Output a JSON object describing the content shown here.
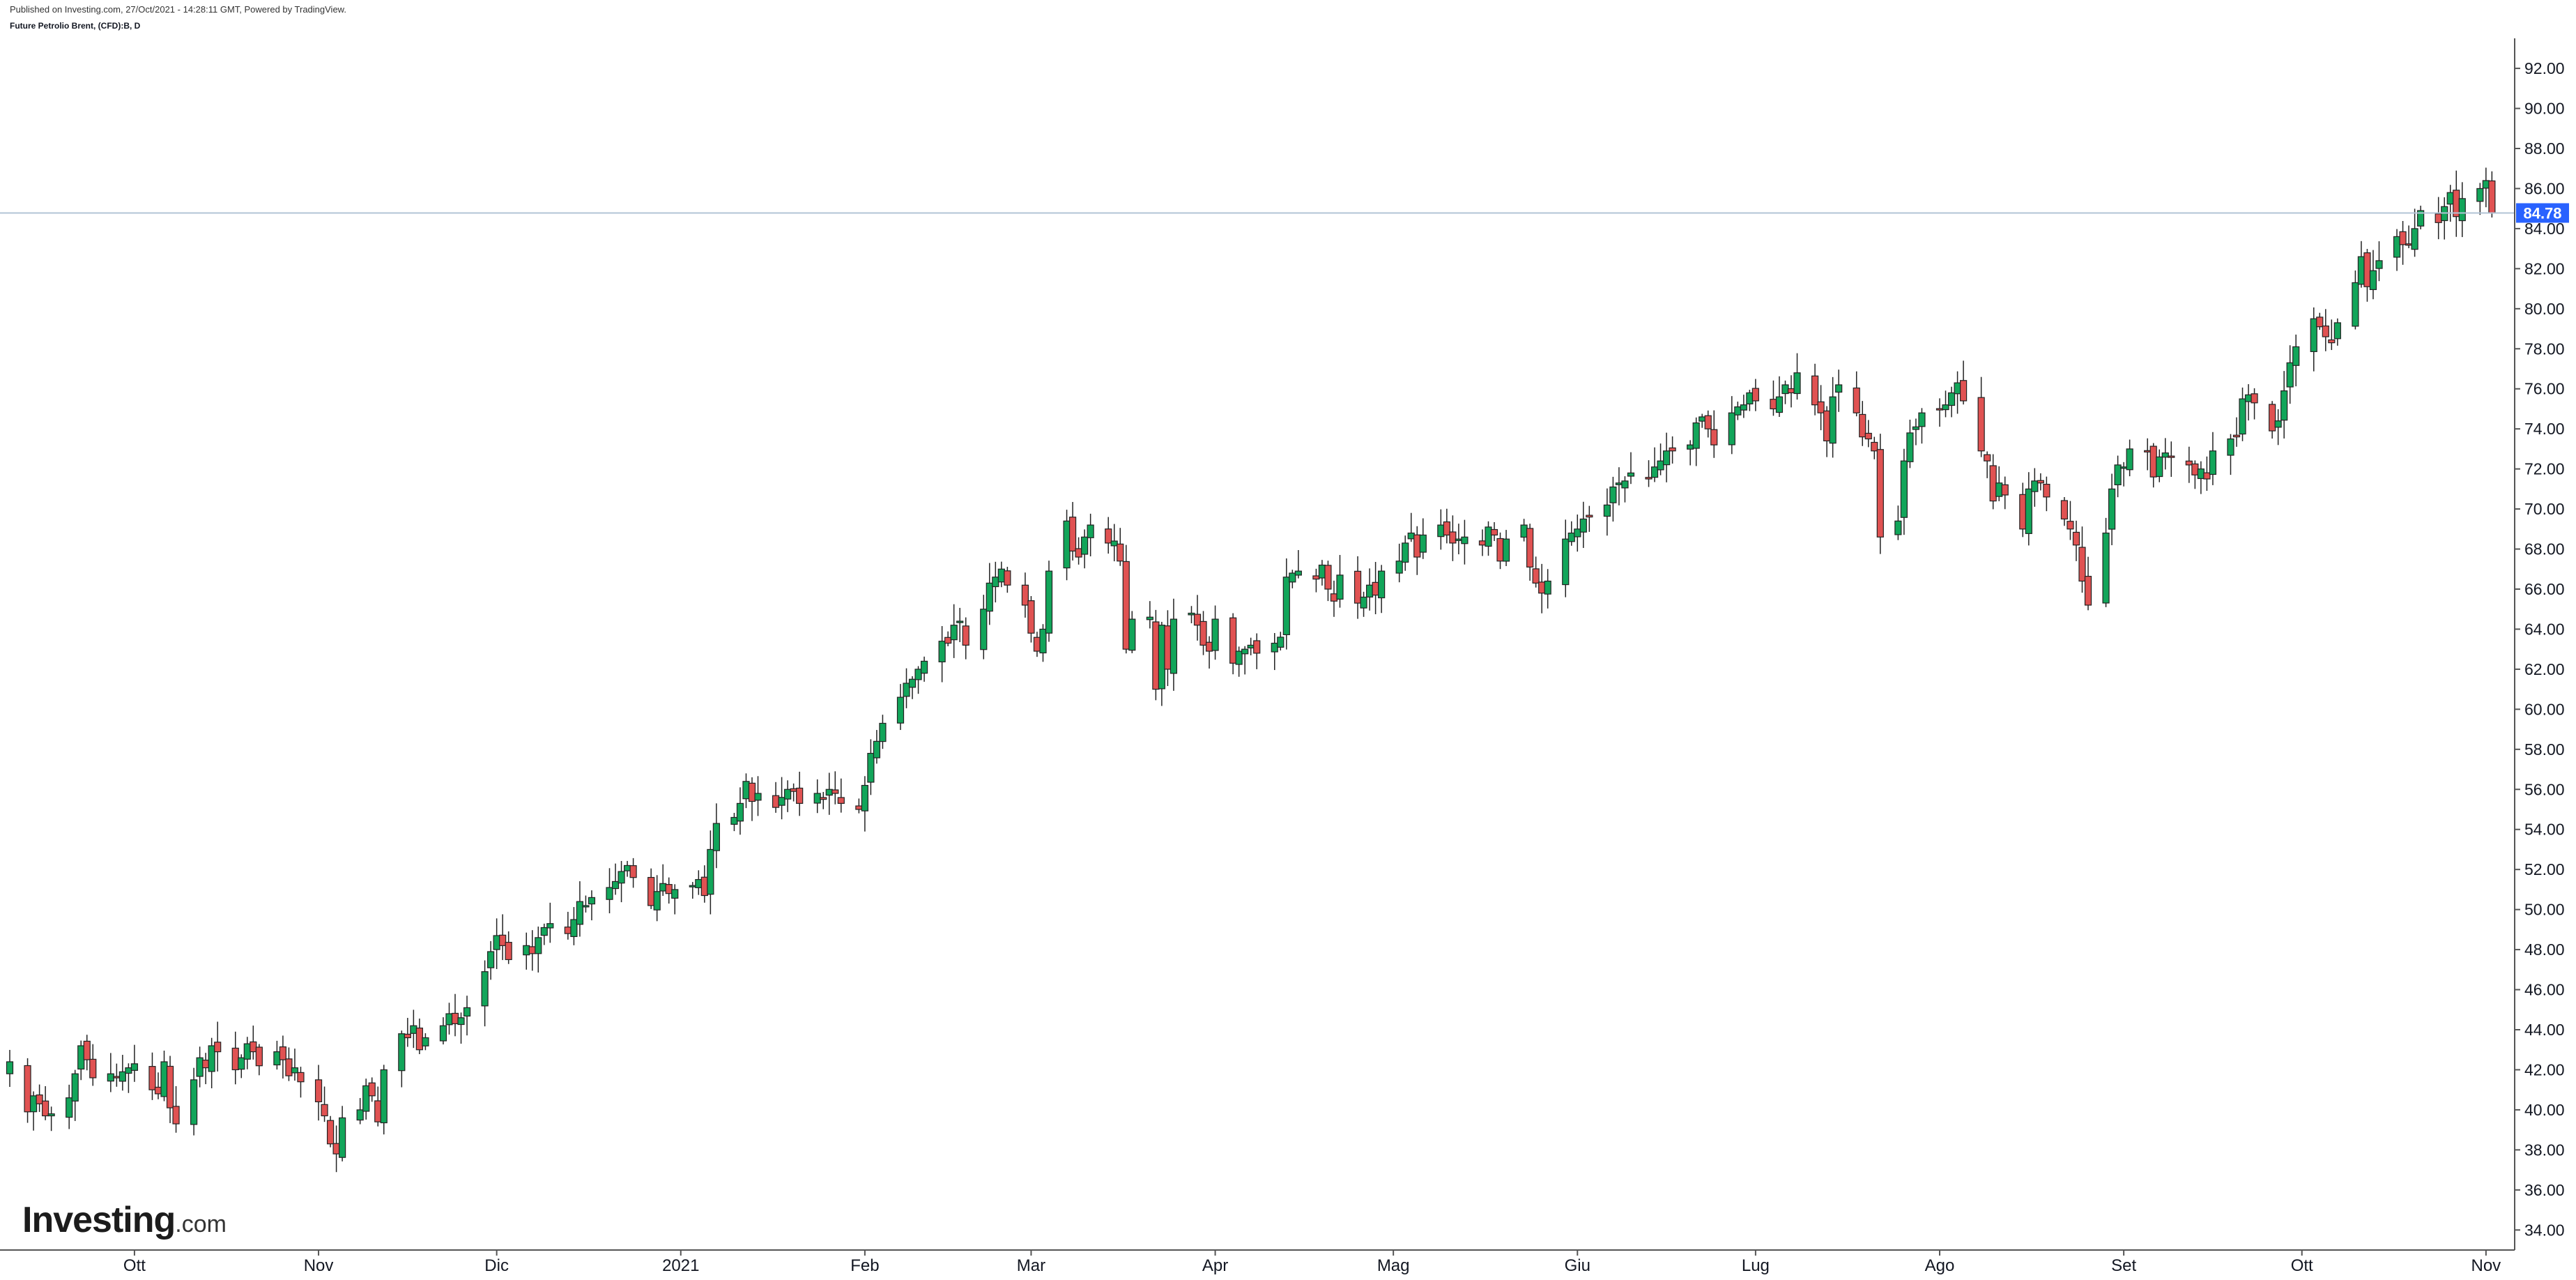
{
  "header": {
    "published": "Published on Investing.com, 27/Oct/2021 - 14:28:11 GMT, Powered by TradingView.",
    "symbol": "Future Petrolio Brent, (CFD):B, D"
  },
  "logo": {
    "name": "Investing",
    "suffix": ".com"
  },
  "price_tag": {
    "value": "84.78",
    "color": "#2962ff"
  },
  "colors": {
    "up": "#26a69a",
    "up_fill": "#12a55a",
    "down": "#e05252",
    "line": "#b2c4d6"
  },
  "chart_data": {
    "type": "candlestick",
    "title": "Future Petrolio Brent, (CFD):B, D",
    "ylim": [
      33.0,
      93.5
    ],
    "y_ticks": [
      "34.00",
      "36.00",
      "38.00",
      "40.00",
      "42.00",
      "44.00",
      "46.00",
      "48.00",
      "50.00",
      "52.00",
      "54.00",
      "56.00",
      "58.00",
      "60.00",
      "62.00",
      "64.00",
      "66.00",
      "68.00",
      "70.00",
      "72.00",
      "74.00",
      "76.00",
      "78.00",
      "80.00",
      "82.00",
      "84.00",
      "86.00",
      "88.00",
      "90.00",
      "92.00"
    ],
    "x_ticks": [
      {
        "label": "Ott",
        "day": 21
      },
      {
        "label": "Nov",
        "day": 52
      },
      {
        "label": "Dic",
        "day": 82
      },
      {
        "label": "2021",
        "day": 113
      },
      {
        "label": "Feb",
        "day": 144
      },
      {
        "label": "Mar",
        "day": 172
      },
      {
        "label": "Apr",
        "day": 203
      },
      {
        "label": "Mag",
        "day": 233
      },
      {
        "label": "Giu",
        "day": 264
      },
      {
        "label": "Lug",
        "day": 294
      },
      {
        "label": "Ago",
        "day": 325
      },
      {
        "label": "Set",
        "day": 356
      },
      {
        "label": "Ott",
        "day": 386
      },
      {
        "label": "Nov",
        "day": 417
      }
    ],
    "current_price": 84.78,
    "closes": [
      {
        "day": 0,
        "close": 42.4
      },
      {
        "day": 3,
        "close": 39.9
      },
      {
        "day": 4,
        "close": 40.7
      },
      {
        "day": 5,
        "close": 40.3
      },
      {
        "day": 6,
        "close": 39.7
      },
      {
        "day": 7,
        "close": 39.8
      },
      {
        "day": 10,
        "close": 40.6
      },
      {
        "day": 11,
        "close": 41.8
      },
      {
        "day": 12,
        "close": 43.2
      },
      {
        "day": 13,
        "close": 42.5
      },
      {
        "day": 14,
        "close": 41.6
      },
      {
        "day": 17,
        "close": 41.8
      },
      {
        "day": 18,
        "close": 41.6
      },
      {
        "day": 19,
        "close": 41.9
      },
      {
        "day": 20,
        "close": 42.1
      },
      {
        "day": 21,
        "close": 42.3
      },
      {
        "day": 24,
        "close": 41.0
      },
      {
        "day": 25,
        "close": 40.8
      },
      {
        "day": 26,
        "close": 42.4
      },
      {
        "day": 27,
        "close": 40.1
      },
      {
        "day": 28,
        "close": 39.3
      },
      {
        "day": 31,
        "close": 41.5
      },
      {
        "day": 32,
        "close": 42.6
      },
      {
        "day": 33,
        "close": 42.1
      },
      {
        "day": 34,
        "close": 43.2
      },
      {
        "day": 35,
        "close": 42.9
      },
      {
        "day": 38,
        "close": 42.0
      },
      {
        "day": 39,
        "close": 42.6
      },
      {
        "day": 40,
        "close": 43.3
      },
      {
        "day": 41,
        "close": 42.9
      },
      {
        "day": 42,
        "close": 42.2
      },
      {
        "day": 45,
        "close": 42.9
      },
      {
        "day": 46,
        "close": 42.5
      },
      {
        "day": 47,
        "close": 41.7
      },
      {
        "day": 48,
        "close": 42.1
      },
      {
        "day": 49,
        "close": 41.4
      },
      {
        "day": 52,
        "close": 40.4
      },
      {
        "day": 53,
        "close": 39.7
      },
      {
        "day": 54,
        "close": 38.3
      },
      {
        "day": 55,
        "close": 37.8
      },
      {
        "day": 56,
        "close": 39.6
      },
      {
        "day": 59,
        "close": 40.0
      },
      {
        "day": 60,
        "close": 41.2
      },
      {
        "day": 61,
        "close": 40.7
      },
      {
        "day": 62,
        "close": 39.4
      },
      {
        "day": 63,
        "close": 42.0
      },
      {
        "day": 66,
        "close": 43.8
      },
      {
        "day": 67,
        "close": 43.6
      },
      {
        "day": 68,
        "close": 44.2
      },
      {
        "day": 69,
        "close": 43.0
      },
      {
        "day": 70,
        "close": 43.6
      },
      {
        "day": 73,
        "close": 44.2
      },
      {
        "day": 74,
        "close": 44.8
      },
      {
        "day": 75,
        "close": 44.3
      },
      {
        "day": 76,
        "close": 44.6
      },
      {
        "day": 77,
        "close": 45.1
      },
      {
        "day": 80,
        "close": 46.9
      },
      {
        "day": 81,
        "close": 47.9
      },
      {
        "day": 82,
        "close": 48.7
      },
      {
        "day": 83,
        "close": 48.2
      },
      {
        "day": 84,
        "close": 47.5
      },
      {
        "day": 87,
        "close": 48.2
      },
      {
        "day": 88,
        "close": 47.8
      },
      {
        "day": 89,
        "close": 48.6
      },
      {
        "day": 90,
        "close": 49.1
      },
      {
        "day": 91,
        "close": 49.3
      },
      {
        "day": 94,
        "close": 48.8
      },
      {
        "day": 95,
        "close": 49.5
      },
      {
        "day": 96,
        "close": 50.4
      },
      {
        "day": 97,
        "close": 50.2
      },
      {
        "day": 98,
        "close": 50.6
      },
      {
        "day": 101,
        "close": 51.1
      },
      {
        "day": 102,
        "close": 51.4
      },
      {
        "day": 103,
        "close": 51.9
      },
      {
        "day": 104,
        "close": 52.2
      },
      {
        "day": 105,
        "close": 51.6
      },
      {
        "day": 108,
        "close": 50.2
      },
      {
        "day": 109,
        "close": 50.9
      },
      {
        "day": 110,
        "close": 51.3
      },
      {
        "day": 111,
        "close": 50.8
      },
      {
        "day": 112,
        "close": 51.0
      },
      {
        "day": 115,
        "close": 51.2
      },
      {
        "day": 116,
        "close": 51.5
      },
      {
        "day": 117,
        "close": 50.7
      },
      {
        "day": 118,
        "close": 53.0
      },
      {
        "day": 119,
        "close": 54.3
      },
      {
        "day": 122,
        "close": 54.6
      },
      {
        "day": 123,
        "close": 55.3
      },
      {
        "day": 124,
        "close": 56.4
      },
      {
        "day": 125,
        "close": 55.4
      },
      {
        "day": 126,
        "close": 55.8
      },
      {
        "day": 129,
        "close": 55.1
      },
      {
        "day": 130,
        "close": 55.6
      },
      {
        "day": 131,
        "close": 56.0
      },
      {
        "day": 132,
        "close": 55.9
      },
      {
        "day": 133,
        "close": 55.3
      },
      {
        "day": 136,
        "close": 55.8
      },
      {
        "day": 137,
        "close": 55.5
      },
      {
        "day": 138,
        "close": 56.0
      },
      {
        "day": 139,
        "close": 55.8
      },
      {
        "day": 140,
        "close": 55.3
      },
      {
        "day": 143,
        "close": 55.0
      },
      {
        "day": 144,
        "close": 56.2
      },
      {
        "day": 145,
        "close": 57.8
      },
      {
        "day": 146,
        "close": 58.4
      },
      {
        "day": 147,
        "close": 59.3
      },
      {
        "day": 150,
        "close": 60.6
      },
      {
        "day": 151,
        "close": 61.3
      },
      {
        "day": 152,
        "close": 61.5
      },
      {
        "day": 153,
        "close": 62.0
      },
      {
        "day": 154,
        "close": 62.4
      },
      {
        "day": 157,
        "close": 63.4
      },
      {
        "day": 158,
        "close": 63.3
      },
      {
        "day": 159,
        "close": 64.2
      },
      {
        "day": 160,
        "close": 64.4
      },
      {
        "day": 161,
        "close": 63.2
      },
      {
        "day": 164,
        "close": 65.0
      },
      {
        "day": 165,
        "close": 66.3
      },
      {
        "day": 166,
        "close": 66.6
      },
      {
        "day": 167,
        "close": 67.0
      },
      {
        "day": 168,
        "close": 66.2
      },
      {
        "day": 171,
        "close": 65.2
      },
      {
        "day": 172,
        "close": 63.8
      },
      {
        "day": 173,
        "close": 62.9
      },
      {
        "day": 174,
        "close": 64.0
      },
      {
        "day": 175,
        "close": 66.9
      },
      {
        "day": 178,
        "close": 69.4
      },
      {
        "day": 179,
        "close": 67.9
      },
      {
        "day": 180,
        "close": 67.6
      },
      {
        "day": 181,
        "close": 68.6
      },
      {
        "day": 182,
        "close": 69.2
      },
      {
        "day": 185,
        "close": 68.3
      },
      {
        "day": 186,
        "close": 68.4
      },
      {
        "day": 187,
        "close": 67.4
      },
      {
        "day": 188,
        "close": 63.0
      },
      {
        "day": 189,
        "close": 64.5
      },
      {
        "day": 192,
        "close": 64.6
      },
      {
        "day": 193,
        "close": 61.0
      },
      {
        "day": 194,
        "close": 64.2
      },
      {
        "day": 195,
        "close": 62.0
      },
      {
        "day": 196,
        "close": 64.5
      },
      {
        "day": 199,
        "close": 64.8
      },
      {
        "day": 200,
        "close": 64.2
      },
      {
        "day": 201,
        "close": 63.2
      },
      {
        "day": 202,
        "close": 62.9
      },
      {
        "day": 203,
        "close": 64.5
      },
      {
        "day": 206,
        "close": 62.3
      },
      {
        "day": 207,
        "close": 62.9
      },
      {
        "day": 208,
        "close": 63.0
      },
      {
        "day": 209,
        "close": 63.2
      },
      {
        "day": 210,
        "close": 62.8
      },
      {
        "day": 213,
        "close": 63.3
      },
      {
        "day": 214,
        "close": 63.6
      },
      {
        "day": 215,
        "close": 66.6
      },
      {
        "day": 216,
        "close": 66.8
      },
      {
        "day": 217,
        "close": 66.9
      },
      {
        "day": 220,
        "close": 66.5
      },
      {
        "day": 221,
        "close": 67.2
      },
      {
        "day": 222,
        "close": 66.0
      },
      {
        "day": 223,
        "close": 65.4
      },
      {
        "day": 224,
        "close": 66.7
      },
      {
        "day": 227,
        "close": 65.3
      },
      {
        "day": 228,
        "close": 65.6
      },
      {
        "day": 229,
        "close": 66.2
      },
      {
        "day": 230,
        "close": 65.7
      },
      {
        "day": 231,
        "close": 66.9
      },
      {
        "day": 234,
        "close": 67.4
      },
      {
        "day": 235,
        "close": 68.3
      },
      {
        "day": 236,
        "close": 68.8
      },
      {
        "day": 237,
        "close": 67.6
      },
      {
        "day": 238,
        "close": 68.7
      },
      {
        "day": 241,
        "close": 69.2
      },
      {
        "day": 242,
        "close": 68.7
      },
      {
        "day": 243,
        "close": 68.3
      },
      {
        "day": 244,
        "close": 68.5
      },
      {
        "day": 245,
        "close": 68.6
      },
      {
        "day": 248,
        "close": 68.2
      },
      {
        "day": 249,
        "close": 69.1
      },
      {
        "day": 250,
        "close": 68.7
      },
      {
        "day": 251,
        "close": 67.4
      },
      {
        "day": 252,
        "close": 68.5
      },
      {
        "day": 255,
        "close": 69.2
      },
      {
        "day": 256,
        "close": 67.1
      },
      {
        "day": 257,
        "close": 66.3
      },
      {
        "day": 258,
        "close": 65.8
      },
      {
        "day": 259,
        "close": 66.4
      },
      {
        "day": 262,
        "close": 68.5
      },
      {
        "day": 263,
        "close": 68.8
      },
      {
        "day": 264,
        "close": 69.0
      },
      {
        "day": 265,
        "close": 69.5
      },
      {
        "day": 266,
        "close": 69.6
      },
      {
        "day": 269,
        "close": 70.2
      },
      {
        "day": 270,
        "close": 71.1
      },
      {
        "day": 271,
        "close": 71.3
      },
      {
        "day": 272,
        "close": 71.4
      },
      {
        "day": 273,
        "close": 71.8
      },
      {
        "day": 276,
        "close": 71.5
      },
      {
        "day": 277,
        "close": 72.1
      },
      {
        "day": 278,
        "close": 72.4
      },
      {
        "day": 279,
        "close": 72.9
      },
      {
        "day": 280,
        "close": 72.9
      },
      {
        "day": 283,
        "close": 73.2
      },
      {
        "day": 284,
        "close": 74.3
      },
      {
        "day": 285,
        "close": 74.6
      },
      {
        "day": 286,
        "close": 74.0
      },
      {
        "day": 287,
        "close": 73.2
      },
      {
        "day": 290,
        "close": 74.8
      },
      {
        "day": 291,
        "close": 75.1
      },
      {
        "day": 292,
        "close": 75.2
      },
      {
        "day": 293,
        "close": 75.8
      },
      {
        "day": 294,
        "close": 75.4
      },
      {
        "day": 297,
        "close": 75.0
      },
      {
        "day": 298,
        "close": 75.6
      },
      {
        "day": 299,
        "close": 76.2
      },
      {
        "day": 300,
        "close": 75.8
      },
      {
        "day": 301,
        "close": 76.8
      },
      {
        "day": 304,
        "close": 75.2
      },
      {
        "day": 305,
        "close": 74.8
      },
      {
        "day": 306,
        "close": 73.4
      },
      {
        "day": 307,
        "close": 75.6
      },
      {
        "day": 308,
        "close": 76.2
      },
      {
        "day": 311,
        "close": 74.8
      },
      {
        "day": 312,
        "close": 73.6
      },
      {
        "day": 313,
        "close": 73.5
      },
      {
        "day": 314,
        "close": 72.9
      },
      {
        "day": 315,
        "close": 68.6
      },
      {
        "day": 318,
        "close": 69.4
      },
      {
        "day": 319,
        "close": 72.4
      },
      {
        "day": 320,
        "close": 73.8
      },
      {
        "day": 321,
        "close": 74.1
      },
      {
        "day": 322,
        "close": 74.8
      },
      {
        "day": 325,
        "close": 75.0
      },
      {
        "day": 326,
        "close": 75.2
      },
      {
        "day": 327,
        "close": 75.8
      },
      {
        "day": 328,
        "close": 76.3
      },
      {
        "day": 329,
        "close": 75.4
      },
      {
        "day": 332,
        "close": 72.9
      },
      {
        "day": 333,
        "close": 72.4
      },
      {
        "day": 334,
        "close": 70.4
      },
      {
        "day": 335,
        "close": 71.3
      },
      {
        "day": 336,
        "close": 70.7
      },
      {
        "day": 339,
        "close": 69.0
      },
      {
        "day": 340,
        "close": 71.0
      },
      {
        "day": 341,
        "close": 71.4
      },
      {
        "day": 342,
        "close": 71.3
      },
      {
        "day": 343,
        "close": 70.6
      },
      {
        "day": 346,
        "close": 69.5
      },
      {
        "day": 347,
        "close": 69.0
      },
      {
        "day": 348,
        "close": 68.2
      },
      {
        "day": 349,
        "close": 66.4
      },
      {
        "day": 350,
        "close": 65.2
      },
      {
        "day": 353,
        "close": 68.8
      },
      {
        "day": 354,
        "close": 71.0
      },
      {
        "day": 355,
        "close": 72.2
      },
      {
        "day": 356,
        "close": 72.1
      },
      {
        "day": 357,
        "close": 73.0
      },
      {
        "day": 360,
        "close": 72.9
      },
      {
        "day": 361,
        "close": 71.6
      },
      {
        "day": 362,
        "close": 72.6
      },
      {
        "day": 363,
        "close": 72.8
      },
      {
        "day": 364,
        "close": 72.6
      },
      {
        "day": 367,
        "close": 72.2
      },
      {
        "day": 368,
        "close": 71.7
      },
      {
        "day": 369,
        "close": 72.0
      },
      {
        "day": 370,
        "close": 71.5
      },
      {
        "day": 371,
        "close": 72.9
      },
      {
        "day": 374,
        "close": 73.5
      },
      {
        "day": 375,
        "close": 73.6
      },
      {
        "day": 376,
        "close": 75.5
      },
      {
        "day": 377,
        "close": 75.7
      },
      {
        "day": 378,
        "close": 75.3
      },
      {
        "day": 381,
        "close": 73.9
      },
      {
        "day": 382,
        "close": 74.4
      },
      {
        "day": 383,
        "close": 75.9
      },
      {
        "day": 384,
        "close": 77.3
      },
      {
        "day": 385,
        "close": 78.1
      },
      {
        "day": 388,
        "close": 79.5
      },
      {
        "day": 389,
        "close": 79.1
      },
      {
        "day": 390,
        "close": 78.6
      },
      {
        "day": 391,
        "close": 78.3
      },
      {
        "day": 392,
        "close": 79.3
      },
      {
        "day": 395,
        "close": 81.3
      },
      {
        "day": 396,
        "close": 82.6
      },
      {
        "day": 397,
        "close": 81.1
      },
      {
        "day": 398,
        "close": 81.9
      },
      {
        "day": 399,
        "close": 82.4
      },
      {
        "day": 402,
        "close": 83.6
      },
      {
        "day": 403,
        "close": 83.2
      },
      {
        "day": 404,
        "close": 83.2
      },
      {
        "day": 405,
        "close": 84.0
      },
      {
        "day": 406,
        "close": 84.9
      },
      {
        "day": 409,
        "close": 84.3
      },
      {
        "day": 410,
        "close": 85.1
      },
      {
        "day": 411,
        "close": 85.8
      },
      {
        "day": 412,
        "close": 84.6
      },
      {
        "day": 413,
        "close": 85.5
      },
      {
        "day": 416,
        "close": 86.0
      },
      {
        "day": 417,
        "close": 86.4
      },
      {
        "day": 418,
        "close": 84.78
      }
    ]
  }
}
